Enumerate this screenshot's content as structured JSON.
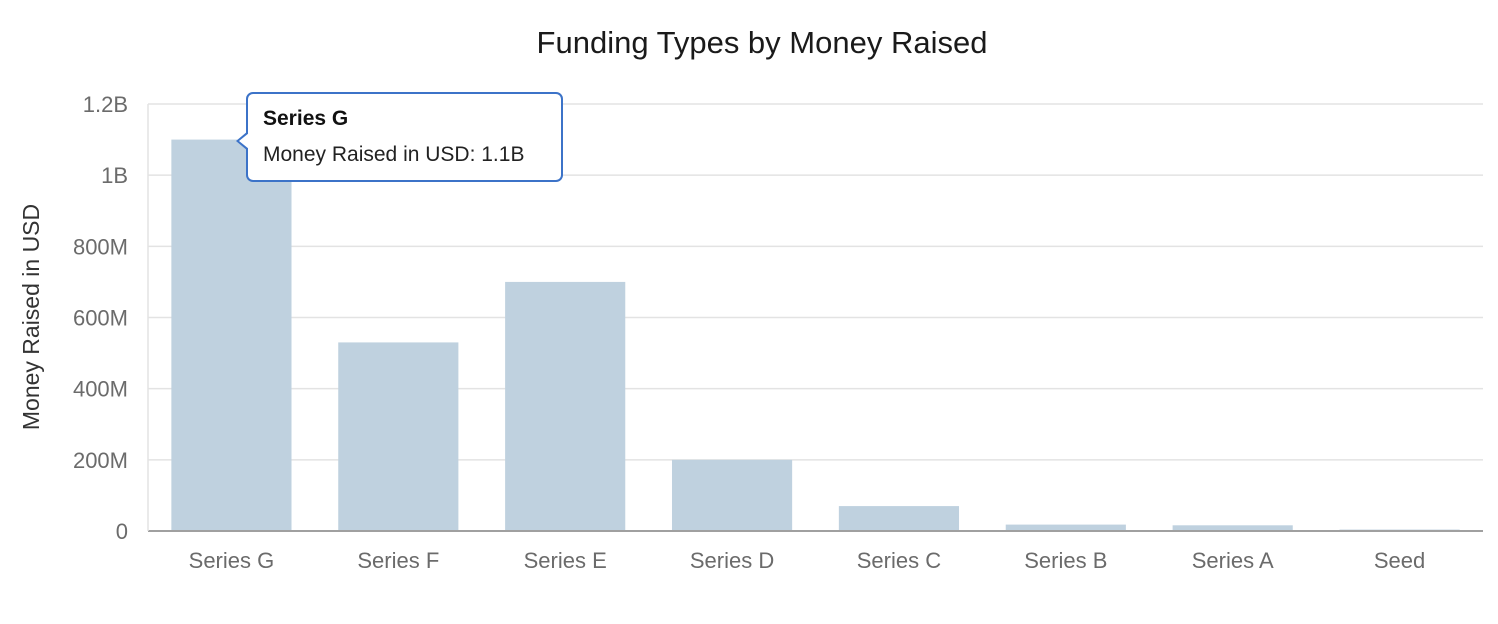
{
  "chart_data": {
    "type": "bar",
    "title": "Funding Types by Money Raised",
    "xlabel": "",
    "ylabel": "Money Raised in USD",
    "categories": [
      "Series G",
      "Series F",
      "Series E",
      "Series D",
      "Series C",
      "Series B",
      "Series A",
      "Seed"
    ],
    "values": [
      1100000000,
      530000000,
      700000000,
      200000000,
      70000000,
      18000000,
      16000000,
      4000000
    ],
    "ylim": [
      0,
      1200000000
    ],
    "yticks": [
      0,
      200000000,
      400000000,
      600000000,
      800000000,
      1000000000,
      1200000000
    ],
    "ytick_labels": [
      "0",
      "200M",
      "400M",
      "600M",
      "800M",
      "1B",
      "1.2B"
    ],
    "bar_color": "#bfd1df",
    "grid": true,
    "legend": "none"
  },
  "tooltip": {
    "title": "Series G",
    "label": "Money Raised in USD",
    "value": "1.1B",
    "text": "Money Raised in USD: 1.1B",
    "border_color": "#3c73c8"
  }
}
